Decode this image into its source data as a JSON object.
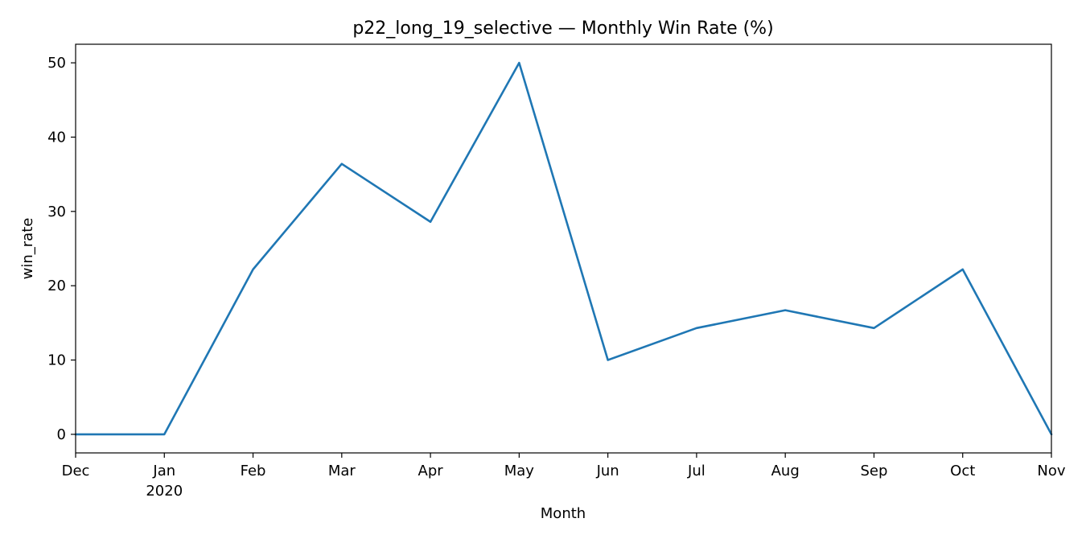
{
  "chart_data": {
    "type": "line",
    "title": "p22_long_19_selective — Monthly Win Rate (%)",
    "xlabel": "Month",
    "ylabel": "win_rate",
    "x": [
      "2019-12",
      "2020-01",
      "2020-02",
      "2020-03",
      "2020-04",
      "2020-05",
      "2020-06",
      "2020-07",
      "2020-08",
      "2020-09",
      "2020-10",
      "2020-11"
    ],
    "x_tick_labels": [
      {
        "label": "Dec",
        "sublabel": ""
      },
      {
        "label": "Jan",
        "sublabel": "2020"
      },
      {
        "label": "Feb",
        "sublabel": ""
      },
      {
        "label": "Mar",
        "sublabel": ""
      },
      {
        "label": "Apr",
        "sublabel": ""
      },
      {
        "label": "May",
        "sublabel": ""
      },
      {
        "label": "Jun",
        "sublabel": ""
      },
      {
        "label": "Jul",
        "sublabel": ""
      },
      {
        "label": "Aug",
        "sublabel": ""
      },
      {
        "label": "Sep",
        "sublabel": ""
      },
      {
        "label": "Oct",
        "sublabel": ""
      },
      {
        "label": "Nov",
        "sublabel": ""
      }
    ],
    "y_ticks": [
      0,
      10,
      20,
      30,
      40,
      50
    ],
    "ylim": [
      -2.5,
      52.5
    ],
    "grid": false,
    "series": [
      {
        "color": "#1f77b4",
        "values": [
          0,
          0,
          22.2,
          36.4,
          28.6,
          50.0,
          10.0,
          14.3,
          16.7,
          14.3,
          22.2,
          0
        ]
      }
    ]
  }
}
